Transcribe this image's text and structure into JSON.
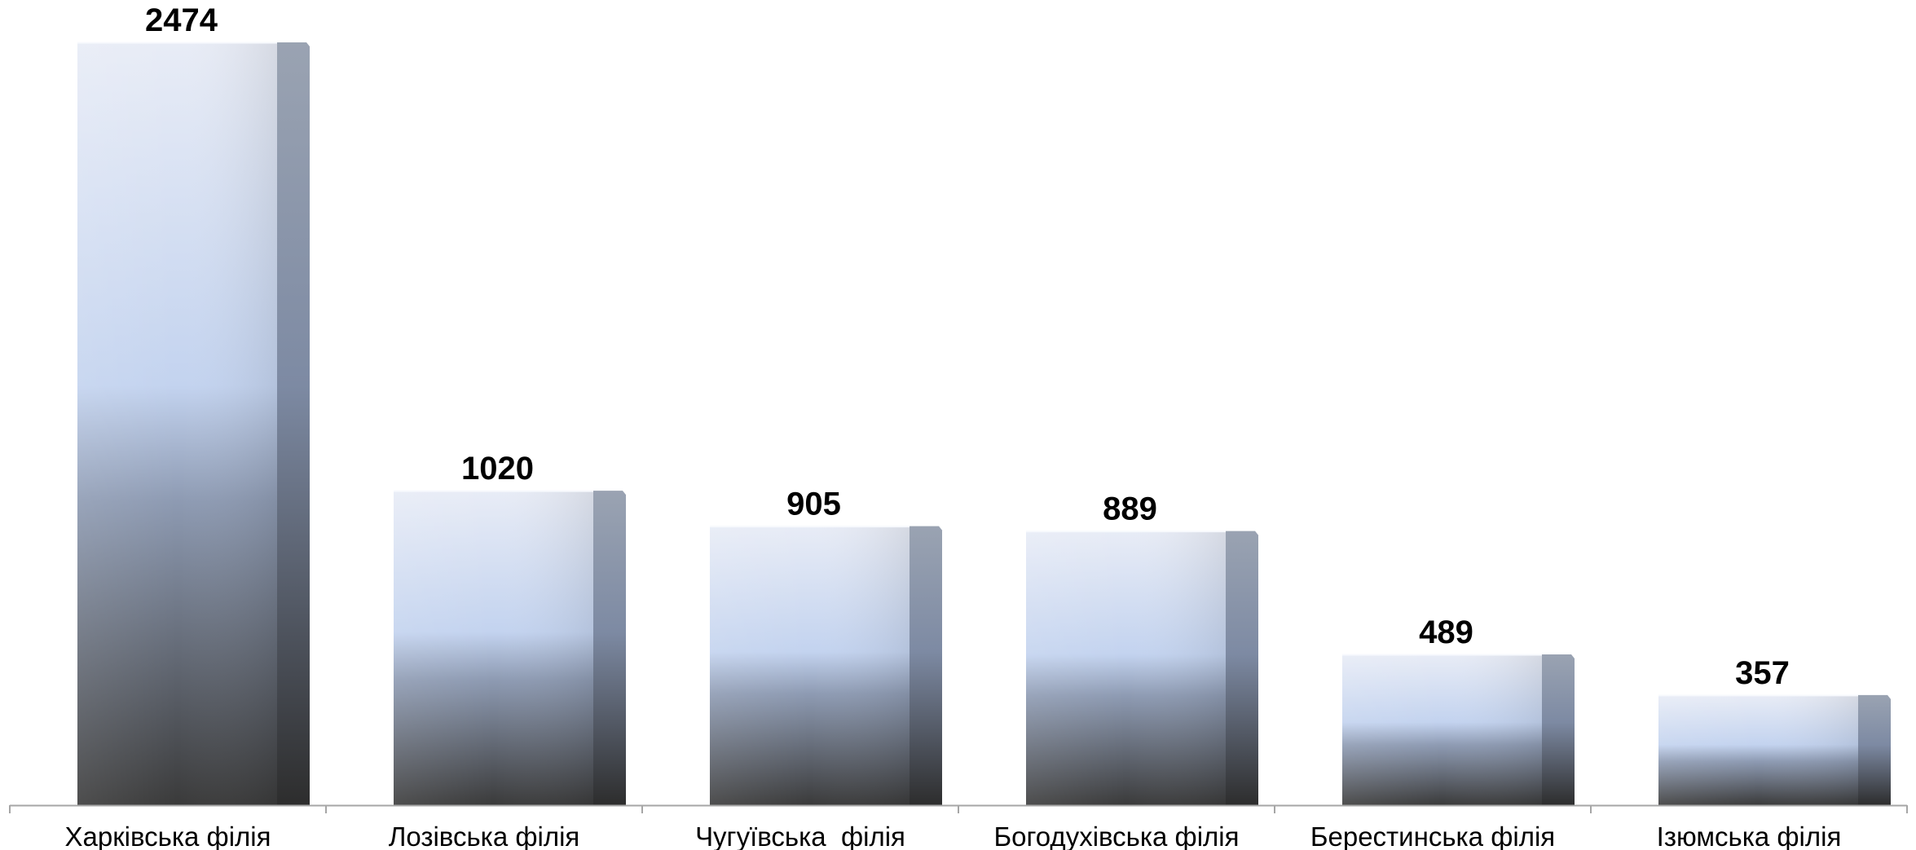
{
  "chart_data": {
    "type": "bar",
    "categories": [
      "Харківська філія",
      "Лозівська філія",
      "Чугуївська  філія",
      "Богодухівська філія",
      "Берестинська філія",
      "Ізюмська філія"
    ],
    "values": [
      2474,
      1020,
      905,
      889,
      489,
      357
    ],
    "data_labels": [
      "2474",
      "1020",
      "905",
      "889",
      "489",
      "357"
    ],
    "ylim": [
      0,
      2474
    ],
    "grid": false,
    "legend": "none",
    "style": "3d-column",
    "colors": {
      "bar_top": "#e8ecf6",
      "bar_mid": "#c3d3ef",
      "bar_bottom": "#3a3a3a",
      "side_top": "#9aa3b2",
      "side_bottom": "#2d2d2d",
      "axis": "#a6a6a6"
    }
  }
}
